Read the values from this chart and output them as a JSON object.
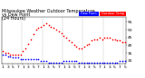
{
  "title": "Milwaukee Weather Outdoor Temperature",
  "title2": "vs Dew Point",
  "title3": "(24 Hours)",
  "temp_color": "#ff0000",
  "dew_color": "#0000ff",
  "black_color": "#000000",
  "bg_color": "#ffffff",
  "grid_color": "#aaaaaa",
  "ylim": [
    28,
    58
  ],
  "xlim": [
    -0.5,
    48.5
  ],
  "ytick_vals": [
    30,
    35,
    40,
    45,
    50,
    55
  ],
  "xtick_positions": [
    0,
    2,
    4,
    6,
    8,
    10,
    12,
    14,
    16,
    18,
    20,
    22,
    24,
    26,
    28,
    30,
    32,
    34,
    36,
    38,
    40,
    42,
    44,
    46,
    48
  ],
  "xtick_labels": [
    "1",
    "3",
    "5",
    "7",
    "1",
    "3",
    "5",
    "7",
    "1",
    "3",
    "5",
    "7",
    "1",
    "3",
    "5",
    "7",
    "1",
    "3",
    "5",
    "7",
    "1",
    "3",
    "5",
    "7",
    "5"
  ],
  "vgrid_positions": [
    7.5,
    15.5,
    23.5,
    31.5,
    39.5,
    47.5
  ],
  "temp_x": [
    0,
    1,
    2,
    3,
    4,
    5,
    6,
    7,
    8,
    9,
    10,
    11,
    12,
    13,
    14,
    15,
    16,
    17,
    18,
    19,
    20,
    21,
    22,
    23,
    24,
    25,
    26,
    27,
    28,
    29,
    30,
    31,
    32,
    33,
    34,
    35,
    36,
    37,
    38,
    39,
    40,
    41,
    42,
    43,
    44,
    45,
    46,
    47,
    48
  ],
  "temp_y": [
    36,
    35,
    35,
    34,
    34,
    34,
    34,
    34,
    36,
    38,
    41,
    44,
    47,
    50,
    51,
    52,
    53,
    54,
    53,
    52,
    51,
    50,
    49,
    48,
    46,
    45,
    43,
    42,
    40,
    39,
    38,
    38,
    39,
    40,
    41,
    43,
    44,
    44,
    45,
    44,
    45,
    45,
    45,
    44,
    44,
    43,
    43,
    42,
    42
  ],
  "dew_x": [
    0,
    1,
    2,
    3,
    4,
    5,
    6,
    7,
    8,
    9,
    10,
    11,
    12,
    13,
    14,
    15,
    16,
    17,
    18,
    19,
    20,
    21,
    22,
    23,
    24,
    25,
    26,
    27,
    28,
    29,
    30,
    31,
    32,
    33,
    34,
    35,
    36,
    37,
    38,
    39,
    40,
    41,
    42,
    43,
    44,
    45,
    46,
    47,
    48
  ],
  "dew_y": [
    34,
    34,
    33,
    33,
    32,
    32,
    32,
    31,
    31,
    31,
    31,
    31,
    31,
    31,
    31,
    30,
    30,
    30,
    29,
    29,
    29,
    29,
    29,
    29,
    30,
    30,
    30,
    30,
    30,
    30,
    29,
    29,
    29,
    29,
    29,
    29,
    29,
    29,
    29,
    29,
    29,
    29,
    29,
    29,
    29,
    29,
    30,
    30,
    30
  ],
  "marker_size": 1.5,
  "title_fontsize": 3.5,
  "tick_fontsize": 3.2,
  "legend_blue_label": "Dew Point",
  "legend_red_label": "Outdoor Temp"
}
